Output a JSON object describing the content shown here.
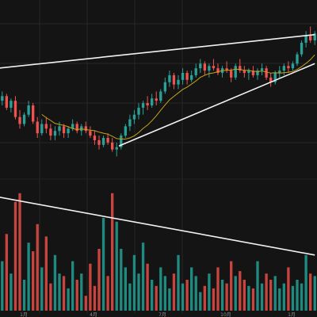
{
  "chart_data": {
    "type": "candlestick",
    "title": "",
    "colors": {
      "background": "#141414",
      "grid": "#262626",
      "up": "#2aa198",
      "down": "#ef5350",
      "ma": "#c8a21a",
      "trendline": "#f2f2f2",
      "volume_up": "#1f8a80",
      "volume_down": "#c8453f"
    },
    "price_panel": {
      "ylim": [
        90,
        160
      ],
      "ma_period": 10,
      "candles": [
        {
          "o": 120,
          "h": 124,
          "l": 118,
          "c": 122
        },
        {
          "o": 122,
          "h": 123,
          "l": 116,
          "c": 117
        },
        {
          "o": 117,
          "h": 121,
          "l": 115,
          "c": 120
        },
        {
          "o": 120,
          "h": 122,
          "l": 112,
          "c": 113
        },
        {
          "o": 113,
          "h": 116,
          "l": 108,
          "c": 110
        },
        {
          "o": 110,
          "h": 115,
          "l": 109,
          "c": 114
        },
        {
          "o": 114,
          "h": 120,
          "l": 113,
          "c": 118
        },
        {
          "o": 118,
          "h": 119,
          "l": 110,
          "c": 111
        },
        {
          "o": 111,
          "h": 113,
          "l": 104,
          "c": 106
        },
        {
          "o": 106,
          "h": 112,
          "l": 105,
          "c": 110
        },
        {
          "o": 110,
          "h": 113,
          "l": 106,
          "c": 108
        },
        {
          "o": 108,
          "h": 110,
          "l": 103,
          "c": 105
        },
        {
          "o": 105,
          "h": 109,
          "l": 103,
          "c": 107
        },
        {
          "o": 107,
          "h": 111,
          "l": 105,
          "c": 109
        },
        {
          "o": 109,
          "h": 110,
          "l": 104,
          "c": 106
        },
        {
          "o": 106,
          "h": 109,
          "l": 104,
          "c": 108
        },
        {
          "o": 108,
          "h": 112,
          "l": 107,
          "c": 110
        },
        {
          "o": 110,
          "h": 111,
          "l": 106,
          "c": 107
        },
        {
          "o": 107,
          "h": 110,
          "l": 105,
          "c": 109
        },
        {
          "o": 109,
          "h": 111,
          "l": 106,
          "c": 107
        },
        {
          "o": 107,
          "h": 109,
          "l": 104,
          "c": 105
        },
        {
          "o": 105,
          "h": 107,
          "l": 101,
          "c": 103
        },
        {
          "o": 103,
          "h": 105,
          "l": 99,
          "c": 101
        },
        {
          "o": 101,
          "h": 105,
          "l": 100,
          "c": 104
        },
        {
          "o": 104,
          "h": 106,
          "l": 101,
          "c": 102
        },
        {
          "o": 102,
          "h": 104,
          "l": 98,
          "c": 99
        },
        {
          "o": 99,
          "h": 102,
          "l": 96,
          "c": 100
        },
        {
          "o": 100,
          "h": 106,
          "l": 99,
          "c": 105
        },
        {
          "o": 105,
          "h": 110,
          "l": 104,
          "c": 109
        },
        {
          "o": 109,
          "h": 114,
          "l": 107,
          "c": 112
        },
        {
          "o": 112,
          "h": 116,
          "l": 110,
          "c": 114
        },
        {
          "o": 114,
          "h": 119,
          "l": 112,
          "c": 117
        },
        {
          "o": 117,
          "h": 120,
          "l": 114,
          "c": 119
        },
        {
          "o": 119,
          "h": 122,
          "l": 116,
          "c": 118
        },
        {
          "o": 118,
          "h": 123,
          "l": 117,
          "c": 121
        },
        {
          "o": 121,
          "h": 124,
          "l": 118,
          "c": 120
        },
        {
          "o": 120,
          "h": 125,
          "l": 119,
          "c": 124
        },
        {
          "o": 124,
          "h": 130,
          "l": 123,
          "c": 128
        },
        {
          "o": 128,
          "h": 133,
          "l": 126,
          "c": 131
        },
        {
          "o": 131,
          "h": 132,
          "l": 125,
          "c": 127
        },
        {
          "o": 127,
          "h": 131,
          "l": 125,
          "c": 129
        },
        {
          "o": 129,
          "h": 134,
          "l": 127,
          "c": 132
        },
        {
          "o": 132,
          "h": 133,
          "l": 127,
          "c": 129
        },
        {
          "o": 129,
          "h": 133,
          "l": 128,
          "c": 131
        },
        {
          "o": 131,
          "h": 136,
          "l": 130,
          "c": 134
        },
        {
          "o": 134,
          "h": 138,
          "l": 132,
          "c": 136
        },
        {
          "o": 136,
          "h": 137,
          "l": 131,
          "c": 133
        },
        {
          "o": 133,
          "h": 136,
          "l": 130,
          "c": 135
        },
        {
          "o": 135,
          "h": 138,
          "l": 133,
          "c": 134
        },
        {
          "o": 134,
          "h": 136,
          "l": 131,
          "c": 132
        },
        {
          "o": 132,
          "h": 135,
          "l": 130,
          "c": 134
        },
        {
          "o": 134,
          "h": 137,
          "l": 132,
          "c": 133
        },
        {
          "o": 133,
          "h": 134,
          "l": 128,
          "c": 130
        },
        {
          "o": 130,
          "h": 136,
          "l": 129,
          "c": 135
        },
        {
          "o": 135,
          "h": 138,
          "l": 132,
          "c": 133
        },
        {
          "o": 133,
          "h": 135,
          "l": 130,
          "c": 132
        },
        {
          "o": 132,
          "h": 134,
          "l": 129,
          "c": 133
        },
        {
          "o": 133,
          "h": 135,
          "l": 130,
          "c": 131
        },
        {
          "o": 131,
          "h": 134,
          "l": 129,
          "c": 133
        },
        {
          "o": 133,
          "h": 136,
          "l": 131,
          "c": 134
        },
        {
          "o": 134,
          "h": 135,
          "l": 129,
          "c": 130
        },
        {
          "o": 130,
          "h": 132,
          "l": 126,
          "c": 128
        },
        {
          "o": 128,
          "h": 133,
          "l": 127,
          "c": 132
        },
        {
          "o": 132,
          "h": 135,
          "l": 130,
          "c": 133
        },
        {
          "o": 133,
          "h": 136,
          "l": 131,
          "c": 135
        },
        {
          "o": 135,
          "h": 137,
          "l": 132,
          "c": 134
        },
        {
          "o": 134,
          "h": 137,
          "l": 133,
          "c": 136
        },
        {
          "o": 136,
          "h": 141,
          "l": 135,
          "c": 140
        },
        {
          "o": 140,
          "h": 146,
          "l": 139,
          "c": 145
        },
        {
          "o": 145,
          "h": 150,
          "l": 143,
          "c": 148
        },
        {
          "o": 148,
          "h": 152,
          "l": 145,
          "c": 146
        },
        {
          "o": 146,
          "h": 150,
          "l": 144,
          "c": 149
        }
      ],
      "trendlines": [
        {
          "x1": -1,
          "y1": 134,
          "x2": 71,
          "y2": 148.5
        },
        {
          "x1": 26.5,
          "y1": 100.5,
          "x2": 71,
          "y2": 136
        }
      ]
    },
    "volume_panel": {
      "ylim": [
        0,
        100
      ],
      "values": [
        40,
        62,
        30,
        88,
        95,
        25,
        55,
        48,
        70,
        35,
        60,
        22,
        45,
        30,
        28,
        18,
        40,
        25,
        30,
        12,
        38,
        20,
        50,
        75,
        28,
        95,
        72,
        50,
        35,
        22,
        45,
        30,
        55,
        38,
        25,
        20,
        35,
        28,
        18,
        30,
        45,
        22,
        25,
        35,
        28,
        15,
        20,
        30,
        18,
        35,
        25,
        22,
        40,
        28,
        32,
        25,
        20,
        18,
        40,
        22,
        30,
        25,
        28,
        18,
        22,
        35,
        20,
        25,
        22,
        45,
        30,
        28
      ],
      "trendline": {
        "x1": -1,
        "y1": 92,
        "x2": 71,
        "y2": 45
      }
    },
    "x_tick_labels": [
      "1月",
      "4月",
      "7月",
      "10月",
      "1月"
    ]
  }
}
